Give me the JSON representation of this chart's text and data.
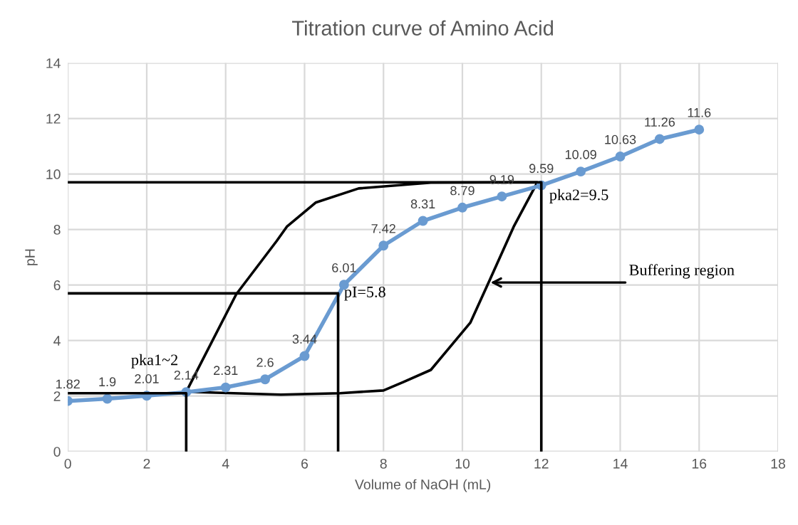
{
  "chart_data": {
    "type": "line",
    "title": "Titration curve of Amino Acid",
    "xlabel": "Volume of NaOH (mL)",
    "ylabel": "pH",
    "xlim": [
      0,
      18
    ],
    "xticks": [
      0,
      2,
      4,
      6,
      8,
      10,
      12,
      14,
      16,
      18
    ],
    "ylim": [
      0,
      14
    ],
    "yticks": [
      0,
      2,
      4,
      6,
      8,
      10,
      12,
      14
    ],
    "grid": true,
    "series": [
      {
        "color": "#6a9bd1",
        "marker": "circle",
        "x": [
          0,
          1,
          2,
          3,
          4,
          5,
          6,
          7,
          8,
          9,
          10,
          11,
          12,
          13,
          14,
          15,
          16
        ],
        "values": [
          1.82,
          1.9,
          2.01,
          2.14,
          2.31,
          2.6,
          3.44,
          6.01,
          7.42,
          8.31,
          8.79,
          9.19,
          9.59,
          10.09,
          10.63,
          11.26,
          11.6
        ],
        "value_labels": [
          "1.82",
          "1.9",
          "2.01",
          "2.14",
          "2.31",
          "2.6",
          "3.44",
          "6.01",
          "7.42",
          "8.31",
          "8.79",
          "9.19",
          "9.59",
          "10.09",
          "10.63",
          "11.26",
          "11.6"
        ]
      },
      {
        "color": "#000000",
        "marker": "none",
        "x": [
          0,
          12,
          12
        ],
        "values": [
          9.7,
          9.7,
          0
        ]
      },
      {
        "color": "#000000",
        "marker": "none",
        "x": [
          0,
          6.85,
          6.85
        ],
        "values": [
          5.7,
          5.7,
          0
        ]
      },
      {
        "color": "#000000",
        "marker": "none",
        "x": [
          0,
          3,
          3
        ],
        "values": [
          2.1,
          2.1,
          0
        ]
      }
    ],
    "annotations": [
      {
        "text": "pka1~2",
        "x": 3,
        "y": 2.14
      },
      {
        "text": "pI=5.8",
        "x": 6.85,
        "y": 5.7
      },
      {
        "text": "pka2=9.5",
        "x": 12,
        "y": 9.6
      },
      "Buffering region"
    ]
  }
}
